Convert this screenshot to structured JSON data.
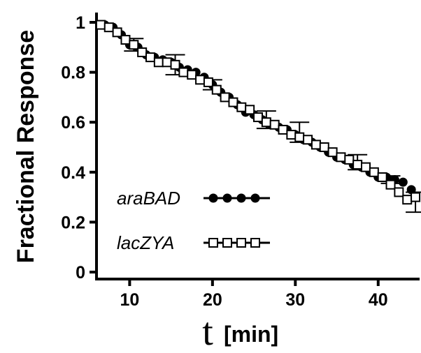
{
  "chart_data": {
    "type": "scatter",
    "title": "",
    "xlabel_var": "t",
    "xlabel_unit": "[min]",
    "ylabel": "Fractional Response",
    "xlim": [
      6,
      45
    ],
    "ylim": [
      0,
      1.05
    ],
    "xticks": [
      10,
      20,
      30,
      40
    ],
    "yticks": [
      0,
      0.2,
      0.4,
      0.6,
      0.8,
      1
    ],
    "ytick_labels": [
      "0",
      "0.2",
      "0.4",
      "0.6",
      "0.8",
      "1"
    ],
    "series": [
      {
        "name": "araBAD",
        "marker": "filled-circle",
        "x": [
          7,
          8,
          9,
          10,
          11,
          12,
          13,
          14,
          15,
          16,
          17,
          18,
          19,
          20,
          21,
          22,
          23,
          24,
          25,
          26,
          27,
          28,
          29,
          30,
          31,
          32,
          33,
          34,
          35,
          36,
          37,
          38,
          39,
          40,
          41,
          42,
          43,
          44
        ],
        "y": [
          0.99,
          0.98,
          0.95,
          0.91,
          0.9,
          0.87,
          0.86,
          0.85,
          0.84,
          0.82,
          0.81,
          0.8,
          0.78,
          0.75,
          0.72,
          0.7,
          0.67,
          0.64,
          0.63,
          0.61,
          0.59,
          0.58,
          0.57,
          0.55,
          0.53,
          0.52,
          0.5,
          0.48,
          0.46,
          0.45,
          0.43,
          0.42,
          0.4,
          0.38,
          0.38,
          0.37,
          0.36,
          0.33
        ]
      },
      {
        "name": "lacZYA",
        "marker": "open-square",
        "x": [
          6.5,
          7.5,
          8.5,
          9.5,
          10.5,
          11.5,
          12.5,
          13.5,
          14.5,
          15.5,
          16.5,
          17.5,
          18.5,
          19.5,
          20.5,
          21.5,
          22.5,
          23.5,
          24.5,
          25.5,
          26.5,
          27.5,
          28.5,
          29.5,
          30.5,
          31.5,
          32.5,
          33.5,
          34.5,
          35.5,
          36.5,
          37.5,
          38.5,
          39.5,
          40.5,
          41.5,
          42.5,
          43.5,
          44.5
        ],
        "y": [
          0.99,
          0.98,
          0.96,
          0.93,
          0.91,
          0.88,
          0.86,
          0.84,
          0.84,
          0.83,
          0.8,
          0.79,
          0.77,
          0.76,
          0.73,
          0.7,
          0.68,
          0.66,
          0.65,
          0.62,
          0.6,
          0.59,
          0.57,
          0.55,
          0.54,
          0.53,
          0.51,
          0.5,
          0.48,
          0.46,
          0.45,
          0.43,
          0.42,
          0.4,
          0.38,
          0.35,
          0.32,
          0.29,
          0.3
        ]
      }
    ],
    "error_bars": [
      {
        "x": 10.5,
        "y": 0.91,
        "err": 0.025
      },
      {
        "x": 15.5,
        "y": 0.83,
        "err": 0.04
      },
      {
        "x": 20,
        "y": 0.75,
        "err": 0.02
      },
      {
        "x": 26.5,
        "y": 0.61,
        "err": 0.035
      },
      {
        "x": 30.5,
        "y": 0.56,
        "err": 0.04
      },
      {
        "x": 37.5,
        "y": 0.44,
        "err": 0.03
      },
      {
        "x": 41.5,
        "y": 0.37,
        "err": 0.015
      },
      {
        "x": 44.5,
        "y": 0.28,
        "err": 0.04
      }
    ],
    "legend": {
      "placement": "bottom-left",
      "entries": [
        {
          "label": "araBAD",
          "marker": "filled-circle"
        },
        {
          "label": "lacZYA",
          "marker": "open-square"
        }
      ]
    },
    "grid": false,
    "color": "#000000"
  }
}
